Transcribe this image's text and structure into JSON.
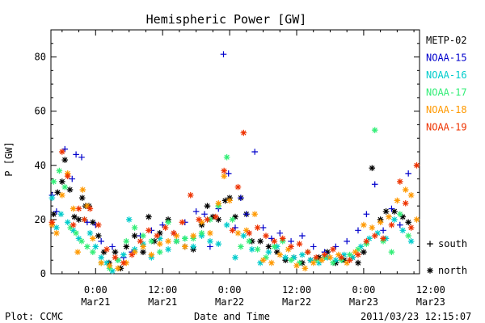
{
  "chart_data": {
    "type": "scatter",
    "title": "Hemispheric Power [GW]",
    "ylabel": "P [GW]",
    "xlabel": "Date and Time",
    "ylim": [
      0,
      90
    ],
    "yticks": [
      0,
      20,
      40,
      60,
      80
    ],
    "xlim": [
      -8,
      58
    ],
    "x_unit": "hours since 2011-03-21 00:00",
    "xticks": [
      {
        "x": 0,
        "line1": "0:00",
        "line2": "Mar21"
      },
      {
        "x": 12,
        "line1": "12:00",
        "line2": "Mar21"
      },
      {
        "x": 24,
        "line1": "0:00",
        "line2": "Mar22"
      },
      {
        "x": 36,
        "line1": "12:00",
        "line2": "Mar22"
      },
      {
        "x": 48,
        "line1": "0:00",
        "line2": "Mar23"
      },
      {
        "x": 60,
        "line1": "12:00",
        "line2": "Mar23"
      }
    ],
    "footer_left": "Plot: CCMC",
    "footer_right": "2011/03/23 12:15:07",
    "marker_key": [
      {
        "symbol": "+",
        "label": "south"
      },
      {
        "symbol": "*",
        "label": "north"
      }
    ],
    "series": [
      {
        "name": "METP-02",
        "color": "#000000",
        "marker": "*",
        "points": [
          [
            -7.5,
            22
          ],
          [
            -6.8,
            30
          ],
          [
            -6.0,
            34
          ],
          [
            -5.5,
            42
          ],
          [
            -4.6,
            31
          ],
          [
            -3.8,
            21
          ],
          [
            -3.0,
            20
          ],
          [
            -2.4,
            28
          ],
          [
            -1.8,
            25
          ],
          [
            -1.2,
            25
          ],
          [
            -0.5,
            19
          ],
          [
            0.5,
            14
          ],
          [
            1.5,
            8
          ],
          [
            2.4,
            4
          ],
          [
            3.5,
            8
          ],
          [
            4.5,
            2
          ],
          [
            5.5,
            10
          ],
          [
            7.0,
            14
          ],
          [
            8.5,
            8
          ],
          [
            9.5,
            21
          ],
          [
            10.5,
            12
          ],
          [
            11.5,
            15
          ],
          [
            13.0,
            20
          ],
          [
            14.5,
            12
          ],
          [
            16.0,
            10
          ],
          [
            17.5,
            9
          ],
          [
            19.0,
            18
          ],
          [
            20.0,
            25
          ],
          [
            21.0,
            21
          ],
          [
            22.0,
            20
          ],
          [
            23.2,
            27
          ],
          [
            24.0,
            28
          ],
          [
            25.0,
            21
          ],
          [
            26.0,
            28
          ],
          [
            27.0,
            22
          ],
          [
            28.0,
            12
          ],
          [
            29.5,
            12
          ],
          [
            31.0,
            10
          ],
          [
            32.5,
            8
          ],
          [
            34.0,
            5
          ],
          [
            35.5,
            6
          ],
          [
            37.0,
            4
          ],
          [
            38.5,
            5
          ],
          [
            40.0,
            6
          ],
          [
            41.5,
            8
          ],
          [
            43.0,
            4
          ],
          [
            44.5,
            5
          ],
          [
            46.0,
            6
          ],
          [
            47.0,
            4
          ],
          [
            48.0,
            8
          ],
          [
            49.5,
            39
          ],
          [
            51.0,
            20
          ],
          [
            52.0,
            23
          ],
          [
            53.5,
            23
          ],
          [
            55.0,
            21
          ],
          [
            56.0,
            19
          ]
        ]
      },
      {
        "name": "NOAA-15",
        "color": "#0000cc",
        "marker": "+",
        "points": [
          [
            -7.8,
            29
          ],
          [
            -7.0,
            23
          ],
          [
            -5.5,
            46
          ],
          [
            -4.2,
            35
          ],
          [
            -3.5,
            44
          ],
          [
            -2.5,
            43
          ],
          [
            -1.5,
            19
          ],
          [
            0.0,
            18
          ],
          [
            1.0,
            12
          ],
          [
            3.0,
            10
          ],
          [
            5.0,
            6
          ],
          [
            6.5,
            8
          ],
          [
            8.0,
            14
          ],
          [
            10.0,
            16
          ],
          [
            12.0,
            18
          ],
          [
            14.0,
            15
          ],
          [
            16.0,
            19
          ],
          [
            18.0,
            23
          ],
          [
            19.5,
            22
          ],
          [
            20.5,
            10
          ],
          [
            22.0,
            24
          ],
          [
            22.9,
            81
          ],
          [
            23.8,
            37
          ],
          [
            25.0,
            17
          ],
          [
            26.0,
            28
          ],
          [
            27.0,
            22
          ],
          [
            28.5,
            45
          ],
          [
            30.0,
            17
          ],
          [
            31.5,
            13
          ],
          [
            33.0,
            15
          ],
          [
            35.0,
            12
          ],
          [
            37.0,
            14
          ],
          [
            39.0,
            10
          ],
          [
            41.0,
            8
          ],
          [
            43.0,
            10
          ],
          [
            45.0,
            12
          ],
          [
            47.0,
            16
          ],
          [
            48.5,
            22
          ],
          [
            50.0,
            33
          ],
          [
            51.5,
            16
          ],
          [
            53.0,
            24
          ],
          [
            54.5,
            18
          ],
          [
            56.0,
            37
          ]
        ]
      },
      {
        "name": "NOAA-16",
        "color": "#00cccc",
        "marker": "*",
        "points": [
          [
            -7.8,
            28
          ],
          [
            -7.0,
            17
          ],
          [
            -6.2,
            22
          ],
          [
            -5.0,
            19
          ],
          [
            -4.0,
            16
          ],
          [
            -3.0,
            13
          ],
          [
            -2.0,
            20
          ],
          [
            -1.0,
            15
          ],
          [
            0.0,
            10
          ],
          [
            1.0,
            6
          ],
          [
            2.0,
            4
          ],
          [
            3.0,
            1
          ],
          [
            4.0,
            5
          ],
          [
            5.0,
            7
          ],
          [
            6.0,
            20
          ],
          [
            7.0,
            9
          ],
          [
            8.5,
            11
          ],
          [
            10.0,
            6
          ],
          [
            11.5,
            13
          ],
          [
            13.0,
            9
          ],
          [
            14.5,
            12
          ],
          [
            16.0,
            13
          ],
          [
            17.5,
            10
          ],
          [
            19.0,
            14
          ],
          [
            20.5,
            12
          ],
          [
            22.0,
            11
          ],
          [
            23.5,
            18
          ],
          [
            25.0,
            6
          ],
          [
            26.5,
            14
          ],
          [
            28.0,
            9
          ],
          [
            29.5,
            4
          ],
          [
            31.0,
            8
          ],
          [
            32.5,
            10
          ],
          [
            34.0,
            6
          ],
          [
            35.5,
            6
          ],
          [
            37.0,
            7
          ],
          [
            38.5,
            5
          ],
          [
            40.0,
            4
          ],
          [
            41.5,
            6
          ],
          [
            43.0,
            5
          ],
          [
            44.5,
            7
          ],
          [
            46.0,
            6
          ],
          [
            47.5,
            10
          ],
          [
            49.0,
            13
          ],
          [
            50.5,
            15
          ],
          [
            52.0,
            13
          ],
          [
            53.5,
            20
          ],
          [
            55.0,
            16
          ],
          [
            56.5,
            12
          ]
        ]
      },
      {
        "name": "NOAA-17",
        "color": "#33ee77",
        "marker": "*",
        "points": [
          [
            -7.5,
            34
          ],
          [
            -6.5,
            38
          ],
          [
            -5.5,
            32
          ],
          [
            -4.5,
            17
          ],
          [
            -3.5,
            15
          ],
          [
            -2.5,
            12
          ],
          [
            -1.5,
            10
          ],
          [
            -0.5,
            8
          ],
          [
            1.0,
            4
          ],
          [
            2.5,
            2
          ],
          [
            4.0,
            5
          ],
          [
            5.5,
            12
          ],
          [
            7.0,
            17
          ],
          [
            8.5,
            14
          ],
          [
            10.0,
            12
          ],
          [
            11.5,
            8
          ],
          [
            13.0,
            19
          ],
          [
            14.5,
            12
          ],
          [
            16.0,
            13
          ],
          [
            17.5,
            13
          ],
          [
            19.0,
            15
          ],
          [
            20.5,
            20
          ],
          [
            22.0,
            25
          ],
          [
            23.5,
            43
          ],
          [
            24.5,
            20
          ],
          [
            26.0,
            10
          ],
          [
            27.5,
            12
          ],
          [
            29.0,
            9
          ],
          [
            30.5,
            6
          ],
          [
            32.0,
            10
          ],
          [
            33.5,
            12
          ],
          [
            35.0,
            5
          ],
          [
            36.5,
            4
          ],
          [
            38.0,
            8
          ],
          [
            39.5,
            5
          ],
          [
            41.0,
            6
          ],
          [
            42.5,
            4
          ],
          [
            44.0,
            5
          ],
          [
            45.5,
            7
          ],
          [
            47.0,
            9
          ],
          [
            48.5,
            11
          ],
          [
            50.0,
            53
          ],
          [
            51.5,
            12
          ],
          [
            53.0,
            8
          ],
          [
            54.5,
            22
          ],
          [
            56.0,
            14
          ]
        ]
      },
      {
        "name": "NOAA-18",
        "color": "#ff9900",
        "marker": "*",
        "points": [
          [
            -7.8,
            18
          ],
          [
            -7.0,
            15
          ],
          [
            -6.0,
            29
          ],
          [
            -5.0,
            37
          ],
          [
            -4.0,
            24
          ],
          [
            -3.2,
            8
          ],
          [
            -2.3,
            31
          ],
          [
            -1.5,
            25
          ],
          [
            -0.5,
            13
          ],
          [
            1.0,
            4
          ],
          [
            2.5,
            3
          ],
          [
            4.0,
            2
          ],
          [
            5.5,
            4
          ],
          [
            7.0,
            8
          ],
          [
            8.5,
            10
          ],
          [
            10.0,
            7
          ],
          [
            11.5,
            11
          ],
          [
            13.0,
            12
          ],
          [
            14.5,
            14
          ],
          [
            16.0,
            10
          ],
          [
            17.5,
            14
          ],
          [
            19.0,
            19
          ],
          [
            20.5,
            15
          ],
          [
            22.0,
            26
          ],
          [
            23.0,
            36
          ],
          [
            24.0,
            27
          ],
          [
            25.5,
            15
          ],
          [
            27.0,
            16
          ],
          [
            28.5,
            22
          ],
          [
            30.0,
            5
          ],
          [
            31.5,
            4
          ],
          [
            33.0,
            7
          ],
          [
            34.5,
            9
          ],
          [
            36.0,
            3
          ],
          [
            37.5,
            2
          ],
          [
            39.0,
            4
          ],
          [
            40.5,
            5
          ],
          [
            42.0,
            6
          ],
          [
            43.5,
            7
          ],
          [
            45.0,
            4
          ],
          [
            46.5,
            8
          ],
          [
            48.0,
            18
          ],
          [
            49.5,
            17
          ],
          [
            51.0,
            19
          ],
          [
            52.5,
            21
          ],
          [
            54.0,
            27
          ],
          [
            55.5,
            31
          ],
          [
            56.5,
            29
          ],
          [
            57.5,
            20
          ]
        ]
      },
      {
        "name": "NOAA-19",
        "color": "#ee3300",
        "marker": "*",
        "points": [
          [
            -7.8,
            19
          ],
          [
            -6.0,
            45
          ],
          [
            -5.0,
            36
          ],
          [
            -4.0,
            18
          ],
          [
            -3.0,
            24
          ],
          [
            -2.0,
            20
          ],
          [
            -1.0,
            24
          ],
          [
            0.5,
            18
          ],
          [
            2.0,
            9
          ],
          [
            3.5,
            6
          ],
          [
            5.0,
            4
          ],
          [
            6.5,
            7
          ],
          [
            8.0,
            12
          ],
          [
            9.5,
            16
          ],
          [
            11.0,
            14
          ],
          [
            12.5,
            17
          ],
          [
            14.0,
            15
          ],
          [
            15.5,
            19
          ],
          [
            17.0,
            29
          ],
          [
            18.5,
            20
          ],
          [
            20.0,
            20
          ],
          [
            21.5,
            21
          ],
          [
            23.0,
            38
          ],
          [
            24.5,
            16
          ],
          [
            25.5,
            32
          ],
          [
            26.5,
            52
          ],
          [
            27.5,
            15
          ],
          [
            29.0,
            17
          ],
          [
            30.5,
            14
          ],
          [
            32.0,
            12
          ],
          [
            33.5,
            13
          ],
          [
            35.0,
            10
          ],
          [
            36.5,
            11
          ],
          [
            38.0,
            8
          ],
          [
            39.5,
            6
          ],
          [
            41.0,
            7
          ],
          [
            42.5,
            9
          ],
          [
            44.0,
            6
          ],
          [
            45.5,
            5
          ],
          [
            47.0,
            7
          ],
          [
            48.5,
            12
          ],
          [
            50.0,
            14
          ],
          [
            51.5,
            13
          ],
          [
            53.0,
            18
          ],
          [
            54.5,
            34
          ],
          [
            55.5,
            26
          ],
          [
            56.5,
            17
          ],
          [
            57.5,
            40
          ]
        ]
      }
    ]
  }
}
